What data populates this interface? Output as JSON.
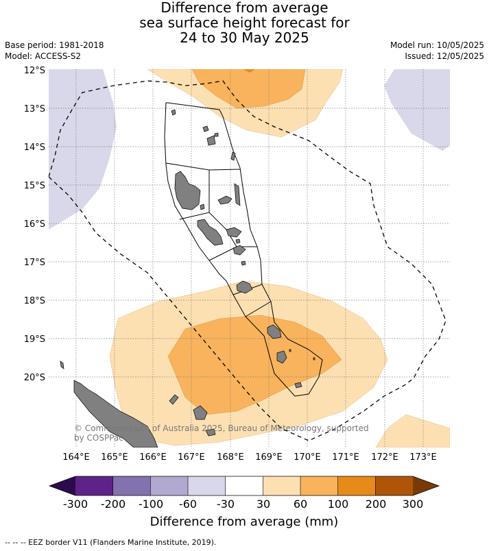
{
  "header": {
    "title_lines": [
      "Difference from average",
      "sea surface height forecast for",
      "24 to 30 May 2025"
    ],
    "base_period": "Base period: 1981-2018",
    "model": "Model: ACCESS-S2",
    "model_run": "Model run: 10/05/2025",
    "issued": "Issued: 12/05/2025"
  },
  "map": {
    "lat_labels": [
      "12°S",
      "13°S",
      "14°S",
      "15°S",
      "16°S",
      "17°S",
      "18°S",
      "19°S",
      "20°S"
    ],
    "lon_labels": [
      "164°E",
      "165°E",
      "166°E",
      "167°E",
      "168°E",
      "169°E",
      "170°E",
      "171°E",
      "172°E",
      "173°E"
    ],
    "copyright": "© Commonwealth of Australia 2025, Bureau of Meteorology, supported by COSPPac",
    "colors": {
      "anomaly_30_60": "#fde0b2",
      "anomaly_60_100": "#f9b35c",
      "anomaly_100_200": "#e68a1a",
      "anomaly_neg_60_30": "#d8d8ea",
      "land": "#808080",
      "grid": "#888888"
    }
  },
  "colorbar": {
    "title": "Difference from average (mm)",
    "tick_labels": [
      "-300",
      "-200",
      "-100",
      "-60",
      "-30",
      "30",
      "60",
      "100",
      "200",
      "300"
    ],
    "segment_colors": [
      "#5e2388",
      "#8372ad",
      "#b2a9d0",
      "#d8d8ea",
      "#ffffff",
      "#fde0b2",
      "#f9b35c",
      "#e68a1a",
      "#b05508"
    ],
    "extend_low_color": "#2d0a4b",
    "extend_high_color": "#7a3a06"
  },
  "footer": {
    "legend": "--  --  -- EEZ border V11 (Flanders Marine Institute, 2019)."
  }
}
